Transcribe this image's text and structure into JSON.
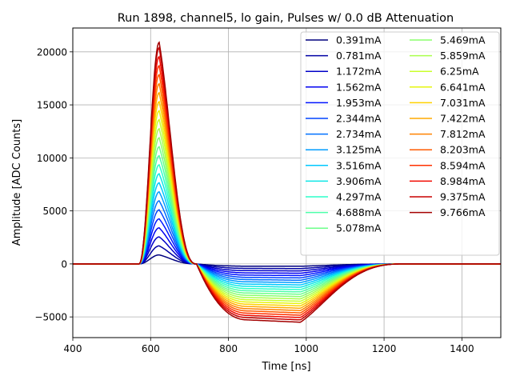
{
  "chart_data": {
    "type": "line",
    "title": "Run 1898, channel5, lo gain, Pulses w/ 0.0 dB Attenuation",
    "xlabel": "Time [ns]",
    "ylabel": "Amplitude [ADC Counts]",
    "xlim": [
      400,
      1500
    ],
    "ylim": [
      -6950,
      22250
    ],
    "xticks": [
      400,
      600,
      800,
      1000,
      1200,
      1400
    ],
    "xtick_labels": [
      "400",
      "600",
      "800",
      "1000",
      "1200",
      "1400"
    ],
    "yticks": [
      -5000,
      0,
      5000,
      10000,
      15000,
      20000
    ],
    "ytick_labels": [
      "−5000",
      "0",
      "5000",
      "10000",
      "15000",
      "20000"
    ],
    "grid": true,
    "legend_position": "top-right",
    "legend_columns": 2,
    "pulse_shape": {
      "baseline_end_ns": 570,
      "peak_time_ns": 622,
      "zero_cross_ns": 718,
      "undershoot_flat_ns": [
        850,
        985
      ],
      "recovery_end_ns": 1250
    },
    "series": [
      {
        "name": "0.391mA",
        "color": "#00007f",
        "peak": 850,
        "trough": -220
      },
      {
        "name": "0.781mA",
        "color": "#0000a4",
        "peak": 1700,
        "trough": -440
      },
      {
        "name": "1.172mA",
        "color": "#0000c8",
        "peak": 2550,
        "trough": -660
      },
      {
        "name": "1.562mA",
        "color": "#0000f1",
        "peak": 3400,
        "trough": -880
      },
      {
        "name": "1.953mA",
        "color": "#0014ff",
        "peak": 4250,
        "trough": -1100
      },
      {
        "name": "2.344mA",
        "color": "#0044ff",
        "peak": 5100,
        "trough": -1320
      },
      {
        "name": "2.734mA",
        "color": "#0070ff",
        "peak": 5950,
        "trough": -1540
      },
      {
        "name": "3.125mA",
        "color": "#009cff",
        "peak": 6800,
        "trough": -1760
      },
      {
        "name": "3.516mA",
        "color": "#00c8ff",
        "peak": 7650,
        "trough": -1980
      },
      {
        "name": "3.906mA",
        "color": "#0ee6e6",
        "peak": 8500,
        "trough": -2200
      },
      {
        "name": "4.297mA",
        "color": "#2cffca",
        "peak": 9350,
        "trough": -2420
      },
      {
        "name": "4.688mA",
        "color": "#4dffaa",
        "peak": 10200,
        "trough": -2640
      },
      {
        "name": "5.078mA",
        "color": "#6dff8a",
        "peak": 11050,
        "trough": -2860
      },
      {
        "name": "5.469mA",
        "color": "#8aff6d",
        "peak": 11900,
        "trough": -3080
      },
      {
        "name": "5.859mA",
        "color": "#aaff4d",
        "peak": 12750,
        "trough": -3300
      },
      {
        "name": "6.25mA",
        "color": "#caff2c",
        "peak": 13600,
        "trough": -3520
      },
      {
        "name": "6.641mA",
        "color": "#e6f50e",
        "peak": 14450,
        "trough": -3740
      },
      {
        "name": "7.031mA",
        "color": "#ffd200",
        "peak": 15300,
        "trough": -3960
      },
      {
        "name": "7.422mA",
        "color": "#ffaa00",
        "peak": 16150,
        "trough": -4180
      },
      {
        "name": "7.812mA",
        "color": "#ff8200",
        "peak": 17000,
        "trough": -4400
      },
      {
        "name": "8.203mA",
        "color": "#ff5a00",
        "peak": 17850,
        "trough": -4620
      },
      {
        "name": "8.594mA",
        "color": "#ff3200",
        "peak": 18700,
        "trough": -4840
      },
      {
        "name": "8.984mA",
        "color": "#f10a00",
        "peak": 19550,
        "trough": -5060
      },
      {
        "name": "9.375mA",
        "color": "#c80000",
        "peak": 20400,
        "trough": -5280
      },
      {
        "name": "9.766mA",
        "color": "#a40000",
        "peak": 20900,
        "trough": -5500
      }
    ]
  }
}
